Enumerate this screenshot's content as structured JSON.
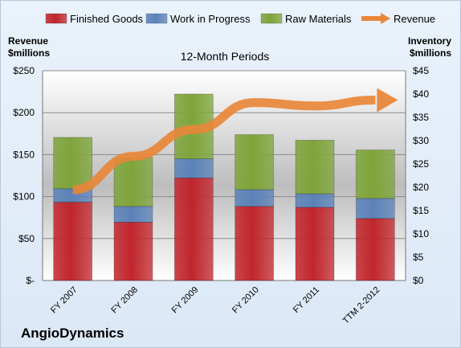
{
  "chart_data": {
    "type": "bar",
    "stacked": true,
    "subtitle": "12-Month Periods",
    "company": "AngioDynamics",
    "categories": [
      "FY 2007",
      "FY 2008",
      "FY 2009",
      "FY 2010",
      "FY 2011",
      "TTM 2-2012"
    ],
    "left_axis": {
      "title_line1": "Revenue",
      "title_line2": "$millions",
      "range": [
        0,
        250
      ],
      "ticks": [
        {
          "value": 0,
          "label": "$-"
        },
        {
          "value": 50,
          "label": "$50"
        },
        {
          "value": 100,
          "label": "$100"
        },
        {
          "value": 150,
          "label": "$150"
        },
        {
          "value": 200,
          "label": "$200"
        },
        {
          "value": 250,
          "label": "$250"
        }
      ]
    },
    "right_axis": {
      "title_line1": "Inventory",
      "title_line2": "$millions",
      "range": [
        0,
        45
      ],
      "ticks": [
        {
          "value": 0,
          "label": "$0"
        },
        {
          "value": 5,
          "label": "$5"
        },
        {
          "value": 10,
          "label": "$10"
        },
        {
          "value": 15,
          "label": "$15"
        },
        {
          "value": 20,
          "label": "$20"
        },
        {
          "value": 25,
          "label": "$25"
        },
        {
          "value": 30,
          "label": "$30"
        },
        {
          "value": 35,
          "label": "$35"
        },
        {
          "value": 40,
          "label": "$40"
        },
        {
          "value": 45,
          "label": "$45"
        }
      ]
    },
    "series": [
      {
        "name": "Finished Goods",
        "axis": "right",
        "color": "#c0262c",
        "values": [
          16.8,
          12.5,
          22.0,
          15.9,
          15.7,
          13.3
        ]
      },
      {
        "name": "Work in Progress",
        "axis": "right",
        "color": "#5b82b8",
        "values": [
          2.9,
          3.4,
          4.1,
          3.6,
          2.9,
          4.3
        ]
      },
      {
        "name": "Raw Materials",
        "axis": "right",
        "color": "#7ea43a",
        "values": [
          11.0,
          10.5,
          13.9,
          11.8,
          11.5,
          10.4
        ]
      },
      {
        "name": "Revenue",
        "axis": "left",
        "type": "line-arrow",
        "color": "#e8873a",
        "values": [
          108,
          148,
          180,
          212,
          208,
          215
        ]
      }
    ],
    "grid": true,
    "legend_position": "top"
  }
}
